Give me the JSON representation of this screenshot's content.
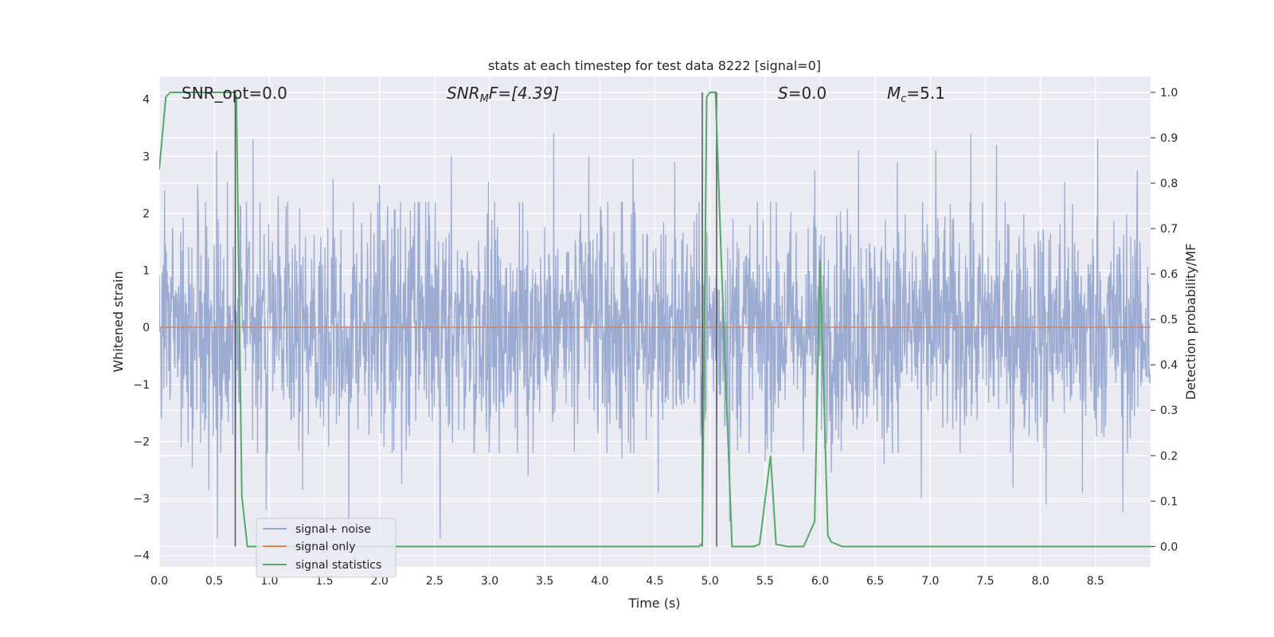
{
  "chart_data": {
    "type": "line",
    "title": "stats at each timestep for test data 8222 [signal=0]",
    "xlabel": "Time (s)",
    "ylabel": "Whitened strain",
    "y2label": "Detection probability/MF",
    "xlim": [
      0.0,
      9.0
    ],
    "ylim": [
      -4.2,
      4.4
    ],
    "y2lim": [
      -0.045,
      1.035
    ],
    "xticks": [
      "0.0",
      "0.5",
      "1.0",
      "1.5",
      "2.0",
      "2.5",
      "3.0",
      "3.5",
      "4.0",
      "4.5",
      "5.0",
      "5.5",
      "6.0",
      "6.5",
      "7.0",
      "7.5",
      "8.0",
      "8.5"
    ],
    "yticks": [
      "−4",
      "−3",
      "−2",
      "−1",
      "0",
      "1",
      "2",
      "3",
      "4"
    ],
    "y2ticks": [
      "0.0",
      "0.1",
      "0.2",
      "0.3",
      "0.4",
      "0.5",
      "0.6",
      "0.7",
      "0.8",
      "0.9",
      "1.0"
    ],
    "grid": true,
    "legend_position": "lower-left",
    "annotations": {
      "snr_opt": "SNR_opt=0.0",
      "snr_mf_name": "SNR",
      "snr_mf_sub": "M",
      "snr_mf_rest": "F=[4.39]",
      "s_name": "S",
      "s_rest": "=0.0",
      "mc_name": "M",
      "mc_sub": "c",
      "mc_rest": "=5.1"
    },
    "series": [
      {
        "name": "signal+ noise",
        "axis": "left",
        "color": "#97a8d0",
        "style": "dense noisy trace, roughly ±1.5 with spikes to about ±3.7",
        "spikes": [
          [
            0.05,
            2.4
          ],
          [
            0.2,
            -2.1
          ],
          [
            0.3,
            -2.45
          ],
          [
            0.35,
            2.5
          ],
          [
            0.45,
            -2.85
          ],
          [
            0.52,
            3.1
          ],
          [
            0.53,
            -3.7
          ],
          [
            0.62,
            2.55
          ],
          [
            0.69,
            -2.4
          ],
          [
            0.85,
            3.3
          ],
          [
            0.97,
            -3.2
          ],
          [
            1.08,
            2.3
          ],
          [
            1.3,
            -2.85
          ],
          [
            1.58,
            2.6
          ],
          [
            1.72,
            -3.6
          ],
          [
            2.0,
            2.5
          ],
          [
            2.2,
            -2.75
          ],
          [
            2.55,
            -3.7
          ],
          [
            2.65,
            3.0
          ],
          [
            2.99,
            2.55
          ],
          [
            3.35,
            -2.6
          ],
          [
            3.58,
            3.4
          ],
          [
            3.9,
            3.0
          ],
          [
            4.2,
            -2.3
          ],
          [
            4.3,
            2.95
          ],
          [
            4.53,
            -2.9
          ],
          [
            4.68,
            2.9
          ],
          [
            4.93,
            3.0
          ],
          [
            5.18,
            -3.4
          ],
          [
            5.5,
            -2.35
          ],
          [
            5.95,
            2.75
          ],
          [
            6.1,
            -2.55
          ],
          [
            6.35,
            3.1
          ],
          [
            6.58,
            -2.4
          ],
          [
            6.7,
            2.9
          ],
          [
            6.92,
            -3.0
          ],
          [
            7.05,
            3.1
          ],
          [
            7.37,
            3.4
          ],
          [
            7.6,
            3.2
          ],
          [
            7.75,
            -2.8
          ],
          [
            8.05,
            -3.1
          ],
          [
            8.22,
            2.55
          ],
          [
            8.38,
            -2.9
          ],
          [
            8.52,
            3.3
          ],
          [
            8.75,
            -3.25
          ],
          [
            8.88,
            2.75
          ]
        ]
      },
      {
        "name": "signal only",
        "axis": "left",
        "color": "#dd8452",
        "x": [
          0.0,
          9.0
        ],
        "y": [
          0.0,
          0.0
        ]
      },
      {
        "name": "signal statistics",
        "axis": "right",
        "color": "#55a868",
        "x": [
          0.0,
          0.06,
          0.1,
          0.2,
          0.5,
          0.68,
          0.7,
          0.75,
          0.8,
          1.0,
          4.8,
          4.9,
          4.92,
          4.93,
          4.97,
          5.0,
          5.05,
          5.1,
          5.2,
          5.4,
          5.45,
          5.55,
          5.6,
          5.7,
          5.85,
          5.95,
          6.0,
          6.07,
          6.1,
          6.2,
          9.0
        ],
        "y": [
          0.83,
          0.99,
          1.0,
          1.0,
          1.0,
          1.0,
          0.99,
          0.11,
          0.0,
          0.0,
          0.0,
          0.0,
          0.005,
          0.0,
          0.99,
          1.0,
          1.0,
          0.65,
          0.0,
          0.0,
          0.005,
          0.2,
          0.005,
          0.0,
          0.0,
          0.055,
          0.63,
          0.025,
          0.01,
          0.0,
          0.0
        ]
      }
    ],
    "vertical_markers": [
      {
        "x": 0.69,
        "y_top": 1.0,
        "y_bottom": 0.0
      },
      {
        "x": 4.93,
        "y_top": 1.0,
        "y_bottom": 0.0
      },
      {
        "x": 5.06,
        "y_top": 1.0,
        "y_bottom": 0.0
      }
    ]
  },
  "colors": {
    "plot_background": "#eaeaf2",
    "grid": "#ffffff",
    "marker_line": "#555555"
  }
}
